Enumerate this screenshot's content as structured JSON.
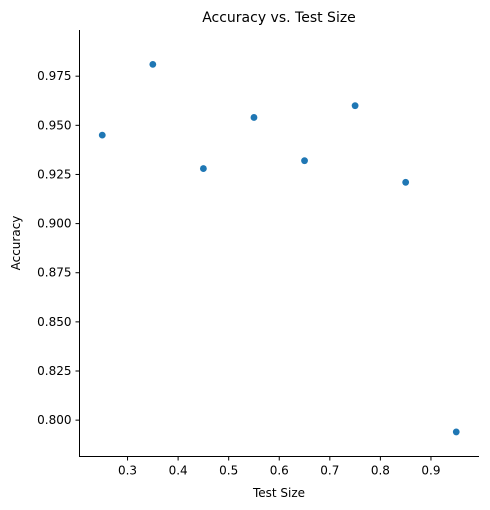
{
  "chart_data": {
    "type": "scatter",
    "title": "Accuracy vs. Test Size",
    "xlabel": "Test Size",
    "ylabel": "Accuracy",
    "xlim": [
      0.205,
      0.995
    ],
    "ylim": [
      0.7815,
      0.9985
    ],
    "x_ticks": [
      0.3,
      0.4,
      0.5,
      0.6,
      0.7,
      0.8,
      0.9
    ],
    "x_tick_labels": [
      "0.3",
      "0.4",
      "0.5",
      "0.6",
      "0.7",
      "0.8",
      "0.9"
    ],
    "y_ticks": [
      0.8,
      0.825,
      0.85,
      0.875,
      0.9,
      0.925,
      0.95,
      0.975
    ],
    "y_tick_labels": [
      "0.800",
      "0.825",
      "0.850",
      "0.875",
      "0.900",
      "0.925",
      "0.950",
      "0.975"
    ],
    "grid": false,
    "marker_color": "#1f77b4",
    "series": [
      {
        "x": [
          0.25,
          0.35,
          0.45,
          0.55,
          0.65,
          0.75,
          0.85,
          0.95
        ],
        "y": [
          0.945,
          0.981,
          0.928,
          0.954,
          0.932,
          0.96,
          0.921,
          0.794
        ]
      }
    ]
  }
}
